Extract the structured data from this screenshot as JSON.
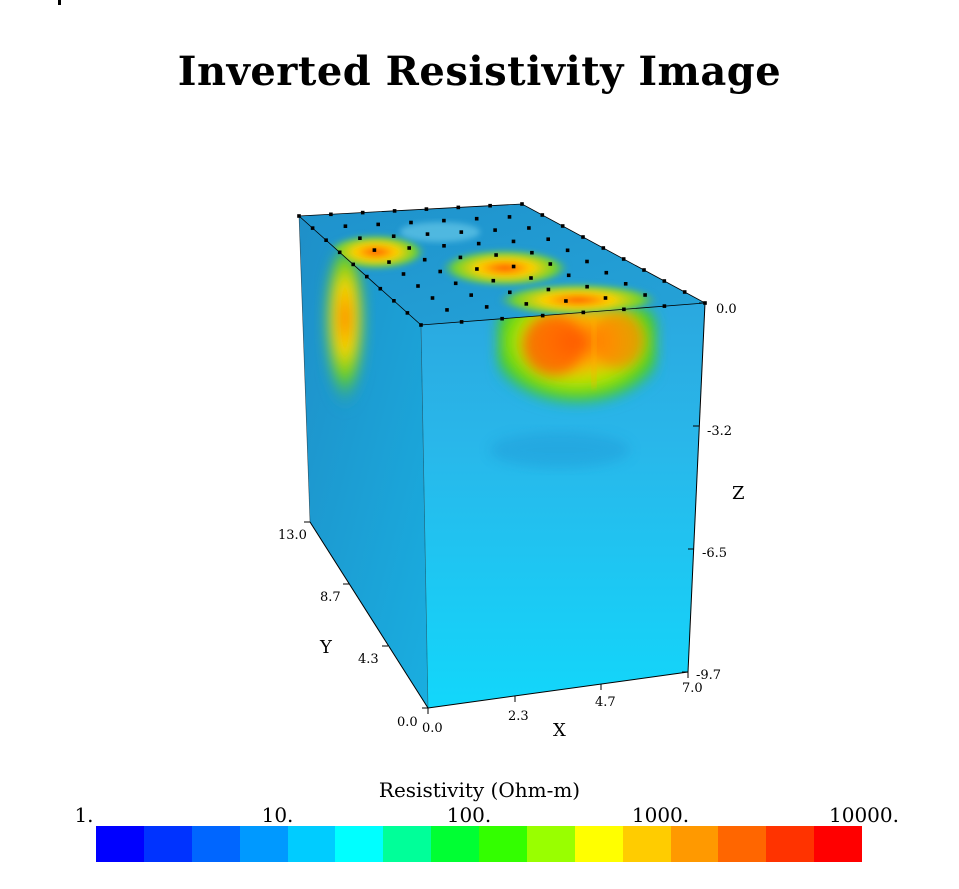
{
  "title": "Inverted Resistivity Image",
  "chart_data": {
    "type": "heatmap",
    "subtype": "3d-volume-block",
    "title": "Inverted Resistivity Image",
    "axes": {
      "x": {
        "label": "X",
        "ticks": [
          "0.0",
          "2.3",
          "4.7",
          "7.0"
        ],
        "range": [
          0,
          7.0
        ]
      },
      "y": {
        "label": "Y",
        "ticks": [
          "0.0",
          "4.3",
          "8.7",
          "13.0"
        ],
        "range": [
          0,
          13.0
        ]
      },
      "z": {
        "label": "Z",
        "ticks": [
          "0.0",
          "-3.2",
          "-6.5",
          "-9.7"
        ],
        "range": [
          -9.7,
          0
        ]
      }
    },
    "colorbar": {
      "label": "Resistivity (Ohm-m)",
      "scale": "log",
      "range": [
        1,
        10000
      ],
      "tick_labels": [
        "1.",
        "10.",
        "100.",
        "1000.",
        "10000."
      ],
      "colors": [
        "#0000ff",
        "#0033ff",
        "#0066ff",
        "#0099ff",
        "#00ccff",
        "#00ffff",
        "#00ff99",
        "#00ff33",
        "#33ff00",
        "#99ff00",
        "#ffff00",
        "#ffcc00",
        "#ff9900",
        "#ff6600",
        "#ff3300",
        "#ff0000"
      ]
    },
    "background_resistivity_color": "#11bbee",
    "anomalies": [
      {
        "face": "front-top-right",
        "x_range": [
          2.5,
          4.5
        ],
        "z_range": [
          -3.0,
          0
        ],
        "max_color": "#ff5500"
      },
      {
        "face": "left-top",
        "y_range": [
          8.5,
          12.5
        ],
        "z_range": [
          -3.5,
          0
        ],
        "max_color": "#ff6600"
      }
    ]
  }
}
